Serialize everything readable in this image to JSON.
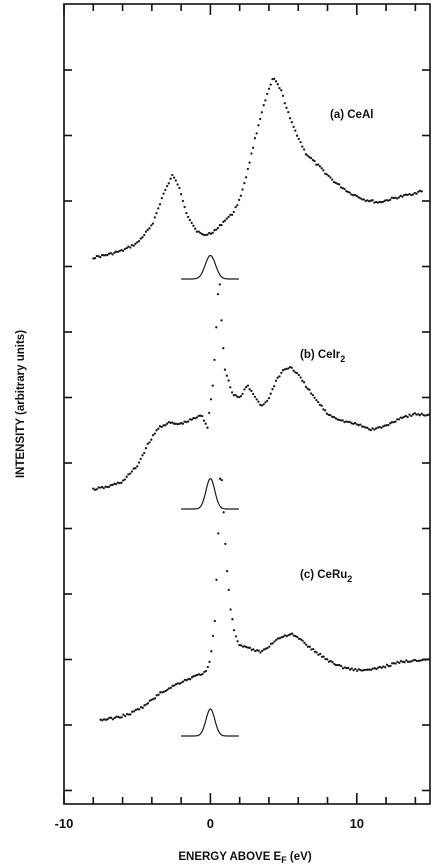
{
  "chart_data": {
    "type": "scatter",
    "title": "",
    "xlabel": {
      "main": "ENERGY ABOVE E",
      "sub": "F",
      "suffix": " (eV)"
    },
    "ylabel": "INTENSITY (arbitrary units)",
    "xlim": [
      -10,
      15
    ],
    "x_ticks": [
      -10,
      0,
      10
    ],
    "x_tick_labels": [
      "-10",
      "0",
      "10"
    ],
    "y_axis_scale": "arbitrary, spectra vertically offset",
    "grid": false,
    "legend": "none",
    "series": [
      {
        "label_main": "(a) CeAl",
        "label_sub": "",
        "baseline": 0,
        "points": [
          [
            -8,
            0.3
          ],
          [
            -7,
            0.35
          ],
          [
            -6,
            0.42
          ],
          [
            -5,
            0.55
          ],
          [
            -4,
            0.85
          ],
          [
            -3.2,
            1.4
          ],
          [
            -2.6,
            1.72
          ],
          [
            -2.2,
            1.55
          ],
          [
            -1.6,
            1.05
          ],
          [
            -1.0,
            0.78
          ],
          [
            -0.5,
            0.68
          ],
          [
            0,
            0.72
          ],
          [
            0.5,
            0.8
          ],
          [
            1,
            0.95
          ],
          [
            1.5,
            1.05
          ],
          [
            2,
            1.3
          ],
          [
            2.5,
            1.75
          ],
          [
            3,
            2.3
          ],
          [
            3.5,
            2.8
          ],
          [
            4,
            3.2
          ],
          [
            4.3,
            3.4
          ],
          [
            4.8,
            3.2
          ],
          [
            5.5,
            2.65
          ],
          [
            6.5,
            2.1
          ],
          [
            7.5,
            1.85
          ],
          [
            8.5,
            1.6
          ],
          [
            9.5,
            1.42
          ],
          [
            10.5,
            1.3
          ],
          [
            11.5,
            1.25
          ],
          [
            12.5,
            1.32
          ],
          [
            13.5,
            1.38
          ],
          [
            14.5,
            1.45
          ]
        ],
        "reference_peak": {
          "center": 0,
          "height": 0.9,
          "width": 0.35,
          "x_range": [
            -2,
            2
          ]
        }
      },
      {
        "label_main": "(b) CeIr",
        "label_sub": "2",
        "baseline": 0,
        "points": [
          [
            -8,
            0.3
          ],
          [
            -7,
            0.35
          ],
          [
            -6,
            0.45
          ],
          [
            -5,
            0.75
          ],
          [
            -4.2,
            1.2
          ],
          [
            -3.5,
            1.5
          ],
          [
            -2.8,
            1.58
          ],
          [
            -2.2,
            1.55
          ],
          [
            -1.6,
            1.6
          ],
          [
            -1.0,
            1.68
          ],
          [
            -0.6,
            1.72
          ],
          [
            -0.2,
            1.5
          ],
          [
            0.2,
            2.4
          ],
          [
            0.4,
            3.4
          ],
          [
            0.6,
            4.5
          ],
          [
            0.8,
            3.3
          ],
          [
            1,
            2.6
          ],
          [
            1.5,
            2.15
          ],
          [
            2,
            2.05
          ],
          [
            2.5,
            2.3
          ],
          [
            3,
            2.1
          ],
          [
            3.5,
            1.9
          ],
          [
            4,
            2.05
          ],
          [
            4.5,
            2.4
          ],
          [
            5,
            2.6
          ],
          [
            5.5,
            2.65
          ],
          [
            6,
            2.5
          ],
          [
            7,
            2.1
          ],
          [
            8,
            1.75
          ],
          [
            9,
            1.62
          ],
          [
            10,
            1.55
          ],
          [
            11,
            1.45
          ],
          [
            12,
            1.52
          ],
          [
            13,
            1.68
          ],
          [
            14,
            1.75
          ],
          [
            15,
            1.72
          ]
        ],
        "reference_peak": {
          "center": 0,
          "height": 1.3,
          "width": 0.3,
          "x_range": [
            -2,
            2
          ]
        }
      },
      {
        "label_main": "(c) CeRu",
        "label_sub": "2",
        "baseline": 0,
        "points": [
          [
            -7.5,
            0.3
          ],
          [
            -6.5,
            0.35
          ],
          [
            -5.5,
            0.45
          ],
          [
            -4.5,
            0.65
          ],
          [
            -3.5,
            0.95
          ],
          [
            -2.8,
            1.1
          ],
          [
            -2,
            1.25
          ],
          [
            -1,
            1.4
          ],
          [
            -0.3,
            1.5
          ],
          [
            0,
            1.8
          ],
          [
            0.3,
            2.8
          ],
          [
            0.5,
            4.5
          ],
          [
            0.7,
            6.8
          ],
          [
            0.9,
            5.5
          ],
          [
            1.1,
            4.2
          ],
          [
            1.4,
            3.0
          ],
          [
            1.7,
            2.4
          ],
          [
            2,
            2.15
          ],
          [
            2.5,
            2.1
          ],
          [
            3,
            2.05
          ],
          [
            3.5,
            2.0
          ],
          [
            4,
            2.15
          ],
          [
            4.5,
            2.3
          ],
          [
            5,
            2.4
          ],
          [
            5.5,
            2.45
          ],
          [
            6,
            2.35
          ],
          [
            7,
            2.05
          ],
          [
            8,
            1.8
          ],
          [
            9,
            1.62
          ],
          [
            10,
            1.55
          ],
          [
            11,
            1.55
          ],
          [
            12,
            1.65
          ],
          [
            13,
            1.75
          ],
          [
            14,
            1.8
          ],
          [
            15,
            1.82
          ]
        ],
        "reference_peak": {
          "center": 0,
          "height": 1.5,
          "width": 0.3,
          "x_range": [
            -2,
            2
          ]
        }
      }
    ]
  }
}
